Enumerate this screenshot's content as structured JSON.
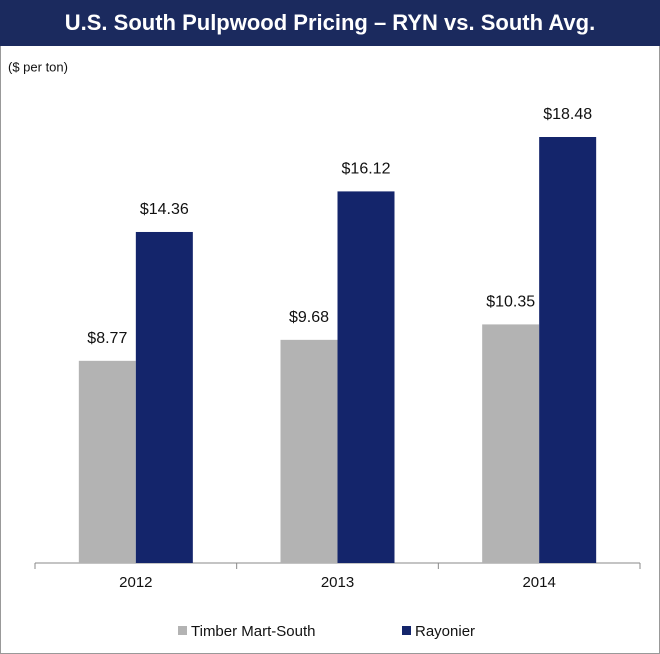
{
  "chart_data": {
    "type": "bar",
    "title": "U.S. South Pulpwood Pricing – RYN vs. South Avg.",
    "subtitle": "($ per ton)",
    "categories": [
      "2012",
      "2013",
      "2014"
    ],
    "series": [
      {
        "name": "Timber Mart-South",
        "color": "#b3b3b3",
        "values": [
          8.77,
          9.68,
          10.35
        ],
        "value_labels": [
          "$8.77",
          "$9.68",
          "$10.35"
        ]
      },
      {
        "name": "Rayonier",
        "color": "#14256b",
        "values": [
          14.36,
          16.12,
          18.48
        ],
        "value_labels": [
          "$14.36",
          "$16.12",
          "$18.48"
        ]
      }
    ]
  }
}
